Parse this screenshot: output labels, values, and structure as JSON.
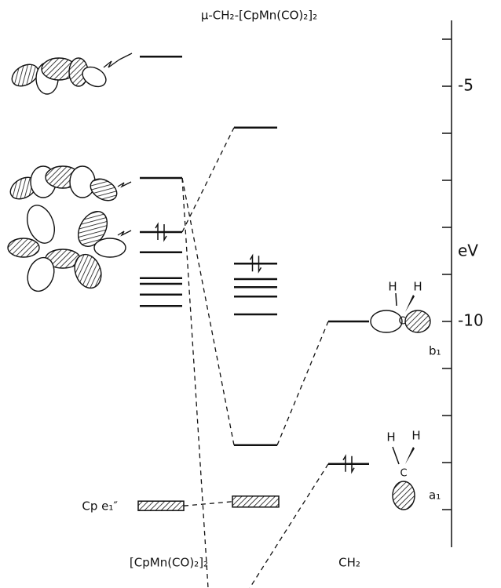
{
  "title": "μ-CH₂-[CpMn(CO)₂]₂",
  "energy_axis": {
    "label": "eV",
    "range": [
      -3.6,
      -14.8
    ],
    "ticks": [
      -4,
      -5,
      -6,
      -7,
      -8,
      -9,
      -10,
      -11,
      -12,
      -13,
      -14
    ],
    "tick_labels": [
      -5,
      -10
    ]
  },
  "columns": {
    "left": {
      "label": "[CpMn(CO)₂]₂",
      "levels": [
        -4.37,
        -6.95,
        -8.1,
        -8.53,
        -9.08,
        -9.2,
        -9.43,
        -9.67
      ],
      "band": {
        "label": "Cp e₁″",
        "energy": -13.92
      }
    },
    "middle": {
      "levels": [
        -5.88,
        -8.77,
        -9.1,
        -9.27,
        -9.47,
        -9.85,
        -12.63
      ],
      "band": {
        "energy": -13.83
      }
    },
    "right": {
      "label": "CH₂",
      "levels": [
        -10,
        -13.03
      ],
      "orbital_labels": [
        "b₁",
        "a₁"
      ]
    }
  },
  "atoms": {
    "h": "H",
    "c": "C"
  }
}
